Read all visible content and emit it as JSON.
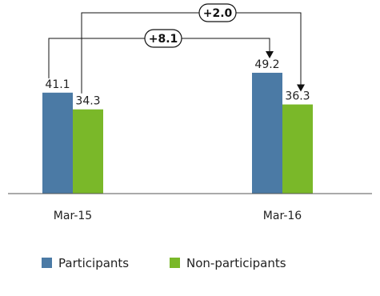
{
  "chart_data": {
    "type": "bar",
    "categories": [
      "Mar-15",
      "Mar-16"
    ],
    "series": [
      {
        "name": "Participants",
        "values": [
          41.1,
          49.2
        ],
        "labels": [
          "41.1",
          "49.2"
        ],
        "color": "#4b7aa5"
      },
      {
        "name": "Non-participants",
        "values": [
          34.3,
          36.3
        ],
        "labels": [
          "34.3",
          "36.3"
        ],
        "color": "#7ab829"
      }
    ],
    "ylim": [
      0,
      60
    ],
    "grid": false,
    "legend": "bottom-left",
    "annotations": [
      {
        "text": "+8.1",
        "from_series": "Participants",
        "from_category": "Mar-15",
        "to_series": "Participants",
        "to_category": "Mar-16"
      },
      {
        "text": "+2.0",
        "from_series": "Non-participants",
        "from_category": "Mar-15",
        "to_series": "Non-participants",
        "to_category": "Mar-16"
      }
    ],
    "annotation_color": "#111111"
  }
}
